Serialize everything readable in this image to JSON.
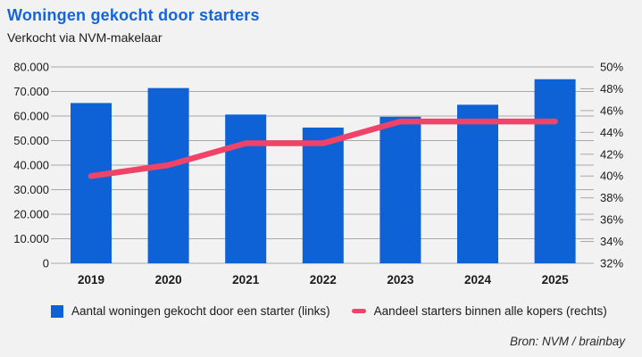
{
  "header": {
    "title": "Woningen gekocht door starters",
    "subtitle": "Verkocht via NVM-makelaar"
  },
  "chart_data": {
    "type": "bar",
    "subtype": "bar-line-combo-dual-axis",
    "categories": [
      "2019",
      "2020",
      "2021",
      "2022",
      "2023",
      "2024",
      "2025"
    ],
    "series": [
      {
        "name": "Aantal woningen gekocht door een starter (links)",
        "type": "bar",
        "axis": "left",
        "values": [
          65300,
          71400,
          60600,
          55300,
          59700,
          64600,
          75000
        ]
      },
      {
        "name": "Aandeel starters binnen alle kopers (rechts)",
        "type": "line",
        "axis": "right",
        "values": [
          40,
          41,
          43,
          43,
          45,
          45,
          45
        ]
      }
    ],
    "left_axis": {
      "min": 0,
      "max": 80000,
      "step": 10000,
      "tick_labels_top_to_bottom": [
        "80.000",
        "70.000",
        "60.000",
        "50.000",
        "40.000",
        "30.000",
        "20.000",
        "10.000",
        "0"
      ]
    },
    "right_axis": {
      "min": 32,
      "max": 50,
      "step": 2,
      "tick_labels_top_to_bottom": [
        "50%",
        "48%",
        "46%",
        "44%",
        "42%",
        "40%",
        "38%",
        "36%",
        "34%",
        "32%"
      ]
    },
    "grid": true,
    "legend_position": "bottom"
  },
  "legend": {
    "items": [
      {
        "label": "Aantal woningen gekocht door een starter (links)",
        "marker": "square"
      },
      {
        "label": "Aandeel starters binnen alle kopers (rechts)",
        "marker": "line"
      }
    ]
  },
  "source": "Bron: NVM / brainbay",
  "colors": {
    "background": "#f2f2f2",
    "bar_blue": "#0f62d6",
    "line_pink": "#ef4368",
    "grid": "#a8a8a8",
    "axis_text": "#1a1a1a",
    "title_blue": "#1565d8"
  }
}
